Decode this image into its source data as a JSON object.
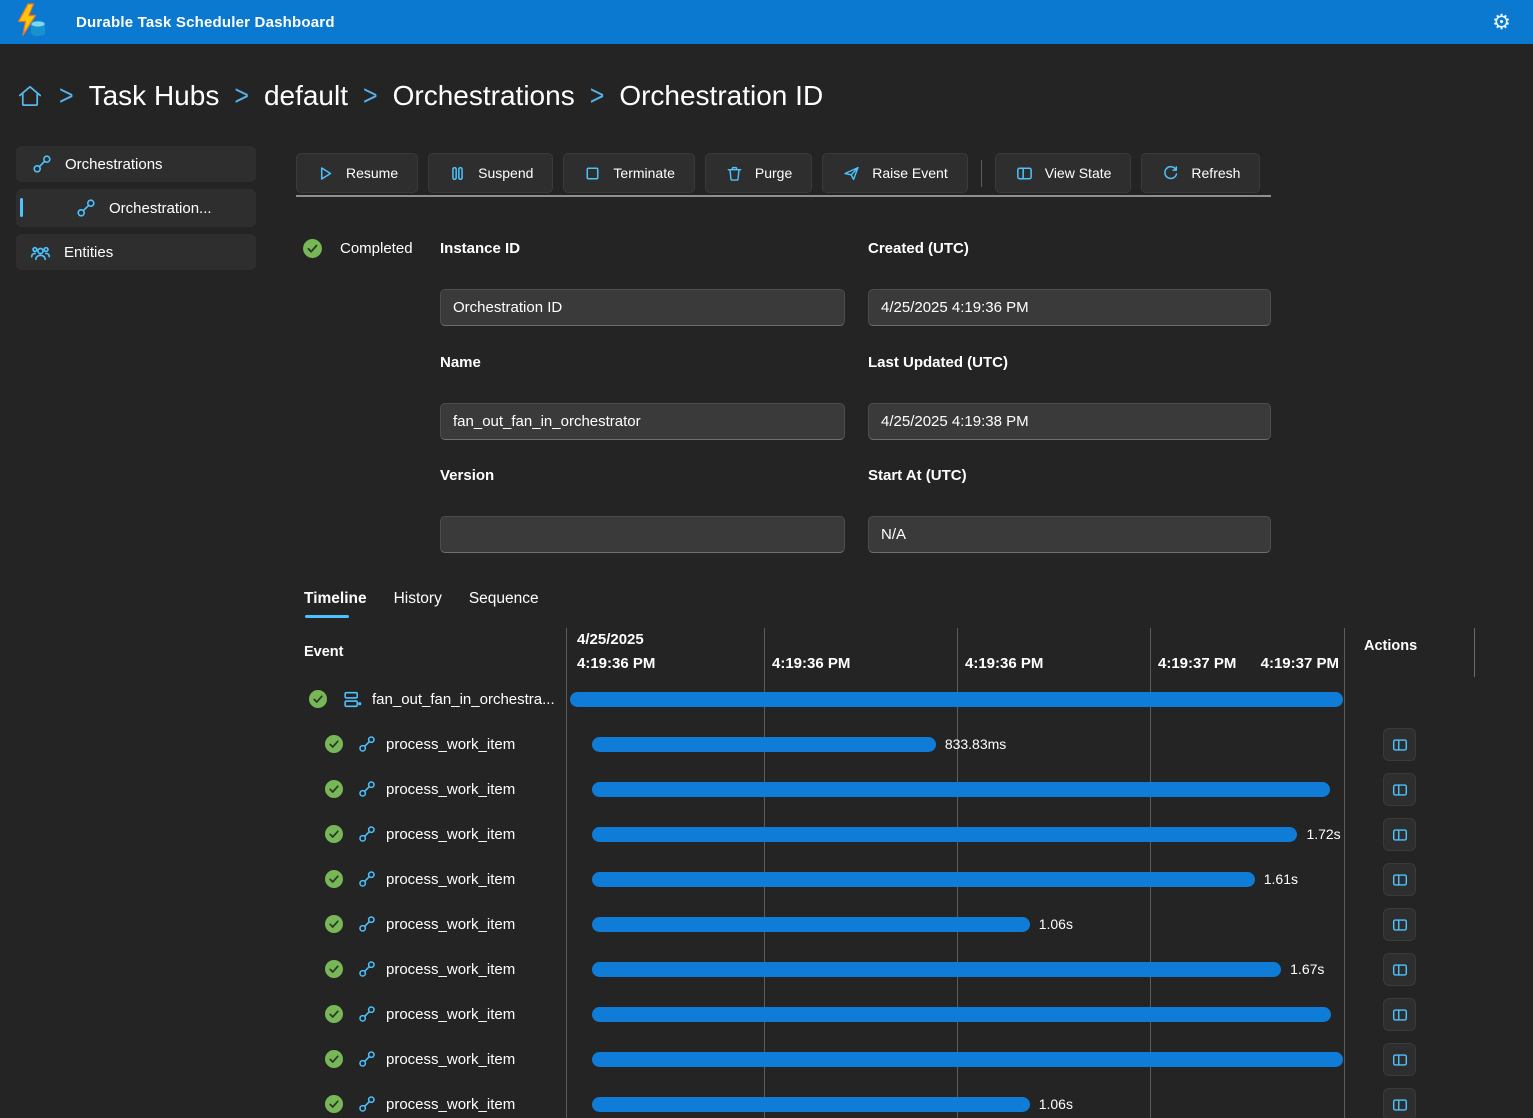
{
  "app": {
    "title": "Durable Task Scheduler Dashboard"
  },
  "icons": {
    "gear": "⚙"
  },
  "colors": {
    "topbar": "#0c79d0",
    "accent": "#4cc2ff",
    "bar": "#0f7cd7",
    "completed_green": "#77b757",
    "background": "#242424"
  },
  "breadcrumb": {
    "items": [
      "Task Hubs",
      "default",
      "Orchestrations",
      "Orchestration ID"
    ],
    "separator": ">"
  },
  "sidebar": {
    "items": [
      {
        "label": "Orchestrations",
        "icon": "link-icon",
        "selected": false
      },
      {
        "label": "Orchestration...",
        "icon": "link-icon",
        "selected": true
      },
      {
        "label": "Entities",
        "icon": "people-icon",
        "selected": false
      }
    ]
  },
  "toolbar": {
    "buttons": [
      {
        "label": "Resume",
        "icon": "play-icon"
      },
      {
        "label": "Suspend",
        "icon": "pause-icon"
      },
      {
        "label": "Terminate",
        "icon": "stop-icon"
      },
      {
        "label": "Purge",
        "icon": "trash-icon"
      },
      {
        "label": "Raise Event",
        "icon": "send-icon"
      },
      {
        "label": "View State",
        "icon": "split-panel-icon"
      },
      {
        "label": "Refresh",
        "icon": "refresh-icon"
      }
    ]
  },
  "details": {
    "status": "Completed",
    "fields": [
      {
        "label": "Instance ID",
        "value": "Orchestration ID"
      },
      {
        "label": "Created (UTC)",
        "value": "4/25/2025 4:19:36 PM"
      },
      {
        "label": "Name",
        "value": "fan_out_fan_in_orchestrator"
      },
      {
        "label": "Last Updated (UTC)",
        "value": "4/25/2025 4:19:38 PM"
      },
      {
        "label": "Version",
        "value": ""
      },
      {
        "label": "Start At (UTC)",
        "value": "N/A"
      }
    ]
  },
  "tabs": [
    "Timeline",
    "History",
    "Sequence"
  ],
  "timeline": {
    "header": {
      "event_col": "Event",
      "actions_col": "Actions",
      "date": "4/25/2025",
      "ticks": [
        "4:19:36 PM",
        "4:19:36 PM",
        "4:19:36 PM",
        "4:19:37 PM",
        "4:19:37 PM"
      ]
    },
    "rows": [
      {
        "name": "fan_out_fan_in_orchestra...",
        "type": "orchestration",
        "status": "completed",
        "bar_start_pct": 0.3,
        "bar_end_pct": 99.9,
        "duration": "",
        "has_action": false
      },
      {
        "name": "process_work_item",
        "type": "activity",
        "status": "completed",
        "bar_start_pct": 3.1,
        "bar_end_pct": 47.4,
        "duration": "833.83ms",
        "has_action": true
      },
      {
        "name": "process_work_item",
        "type": "activity",
        "status": "completed",
        "bar_start_pct": 3.1,
        "bar_end_pct": 98.2,
        "duration": "",
        "has_action": true
      },
      {
        "name": "process_work_item",
        "type": "activity",
        "status": "completed",
        "bar_start_pct": 3.1,
        "bar_end_pct": 94.0,
        "duration": "1.72s",
        "has_action": true
      },
      {
        "name": "process_work_item",
        "type": "activity",
        "status": "completed",
        "bar_start_pct": 3.1,
        "bar_end_pct": 88.5,
        "duration": "1.61s",
        "has_action": true
      },
      {
        "name": "process_work_item",
        "type": "activity",
        "status": "completed",
        "bar_start_pct": 3.1,
        "bar_end_pct": 59.5,
        "duration": "1.06s",
        "has_action": true
      },
      {
        "name": "process_work_item",
        "type": "activity",
        "status": "completed",
        "bar_start_pct": 3.1,
        "bar_end_pct": 91.9,
        "duration": "1.67s",
        "has_action": true
      },
      {
        "name": "process_work_item",
        "type": "activity",
        "status": "completed",
        "bar_start_pct": 3.1,
        "bar_end_pct": 98.3,
        "duration": "",
        "has_action": true
      },
      {
        "name": "process_work_item",
        "type": "activity",
        "status": "completed",
        "bar_start_pct": 3.1,
        "bar_end_pct": 99.9,
        "duration": "",
        "has_action": true
      },
      {
        "name": "process_work_item",
        "type": "activity",
        "status": "completed",
        "bar_start_pct": 3.1,
        "bar_end_pct": 59.5,
        "duration": "1.06s",
        "has_action": true
      }
    ]
  }
}
